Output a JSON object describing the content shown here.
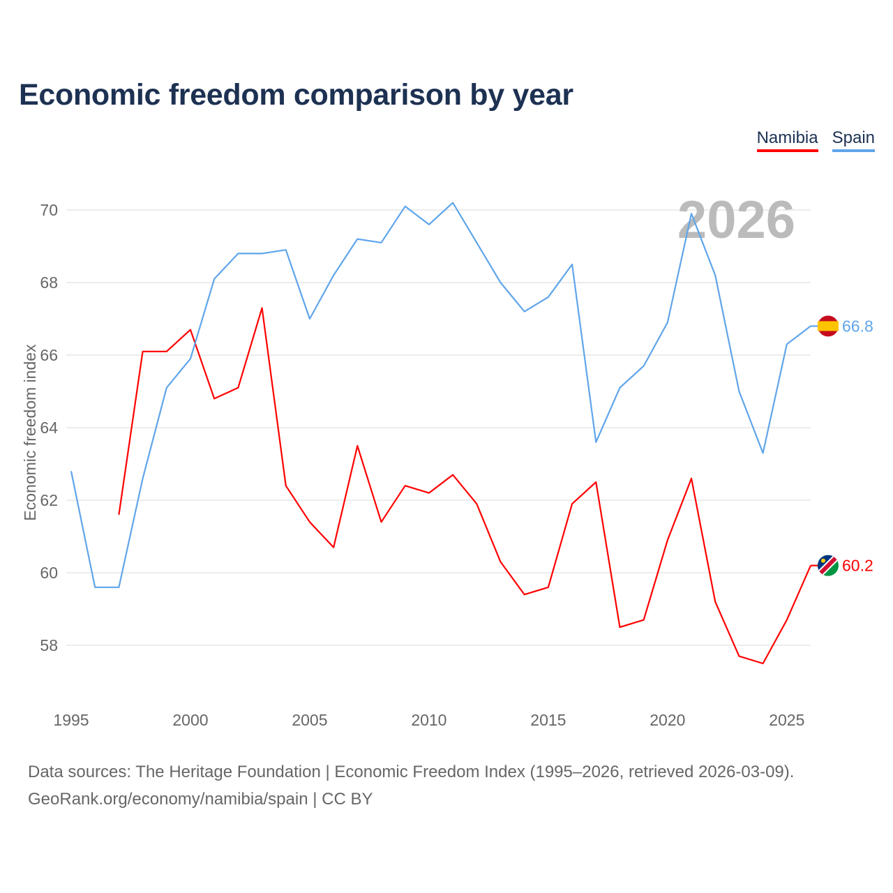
{
  "chart_data": {
    "type": "line",
    "title": "Economic freedom comparison by year",
    "xlabel": "",
    "ylabel": "Economic freedom index",
    "xlim": [
      1995,
      2026
    ],
    "ylim": [
      56.8,
      71
    ],
    "grid": true,
    "legend_placement": "top-right",
    "current_year_label": "2026",
    "x_ticks": [
      1995,
      2000,
      2005,
      2010,
      2015,
      2020,
      2025
    ],
    "y_ticks": [
      58,
      60,
      62,
      64,
      66,
      68,
      70
    ],
    "series": [
      {
        "name": "Namibia",
        "color": "#ff0000",
        "end_label": "60.2",
        "x": [
          1997,
          1998,
          1999,
          2000,
          2001,
          2002,
          2003,
          2004,
          2005,
          2006,
          2007,
          2008,
          2009,
          2010,
          2011,
          2012,
          2013,
          2014,
          2015,
          2016,
          2017,
          2018,
          2019,
          2020,
          2021,
          2022,
          2023,
          2024,
          2025,
          2026
        ],
        "values": [
          61.6,
          66.1,
          66.1,
          66.7,
          64.8,
          65.1,
          67.3,
          62.4,
          61.4,
          60.7,
          63.5,
          61.4,
          62.4,
          62.2,
          62.7,
          61.9,
          60.3,
          59.4,
          59.6,
          61.9,
          62.5,
          58.5,
          58.7,
          60.9,
          62.6,
          59.2,
          57.7,
          57.5,
          58.7,
          60.2
        ]
      },
      {
        "name": "Spain",
        "color": "#5fa5ea",
        "end_label": "66.8",
        "x": [
          1995,
          1996,
          1997,
          1998,
          1999,
          2000,
          2001,
          2002,
          2003,
          2004,
          2005,
          2006,
          2007,
          2008,
          2009,
          2010,
          2011,
          2012,
          2013,
          2014,
          2015,
          2016,
          2017,
          2018,
          2019,
          2020,
          2021,
          2022,
          2023,
          2024,
          2025,
          2026
        ],
        "values": [
          62.8,
          59.6,
          59.6,
          62.6,
          65.1,
          65.9,
          68.1,
          68.8,
          68.8,
          68.9,
          67.0,
          68.2,
          69.2,
          69.1,
          70.1,
          69.6,
          70.2,
          69.1,
          68.0,
          67.2,
          67.6,
          68.5,
          63.6,
          65.1,
          65.7,
          66.9,
          69.9,
          68.2,
          65.0,
          63.3,
          66.3,
          66.8
        ]
      }
    ]
  },
  "footer": {
    "line1": "Data sources: The Heritage Foundation | Economic Freedom Index (1995–2026, retrieved 2026-03-09).",
    "line2": "GeoRank.org/economy/namibia/spain | CC BY"
  }
}
